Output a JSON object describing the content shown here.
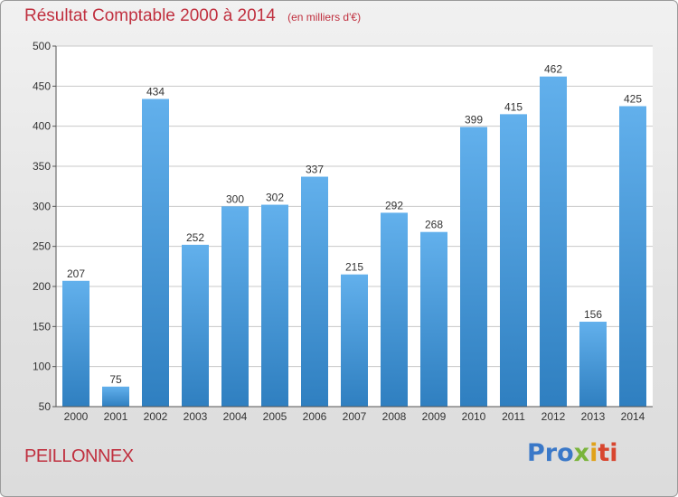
{
  "chart_data": {
    "type": "bar",
    "title": "Résultat Comptable 2000 à 2014",
    "unit_note": "(en milliers d'€)",
    "categories": [
      "2000",
      "2001",
      "2002",
      "2003",
      "2004",
      "2005",
      "2006",
      "2007",
      "2008",
      "2009",
      "2010",
      "2011",
      "2012",
      "2013",
      "2014"
    ],
    "values": [
      207,
      75,
      434,
      252,
      300,
      302,
      337,
      215,
      292,
      268,
      399,
      415,
      462,
      156,
      425
    ],
    "ylim": [
      50,
      500
    ],
    "yticks": [
      50,
      100,
      150,
      200,
      250,
      300,
      350,
      400,
      450,
      500
    ],
    "grid": true,
    "bar_color_top": "#62b0ec",
    "bar_color_bottom": "#2f7fc0"
  },
  "place": "PEILLONNEX",
  "logo": {
    "p1": "Pro",
    "p2": "x",
    "p3": "i",
    "p4": "ti"
  },
  "colors": {
    "title": "#c0303f",
    "grid": "#c8c8c8"
  }
}
